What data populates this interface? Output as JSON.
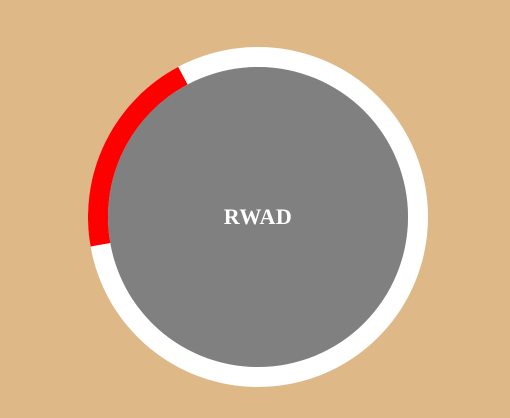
{
  "timer": {
    "label": "RWAD",
    "progress": 0.2,
    "colors": {
      "background": "#dfb887",
      "track": "#ffffff",
      "progress": "#ff0000",
      "face": "#808080",
      "label": "#ffffff"
    }
  }
}
